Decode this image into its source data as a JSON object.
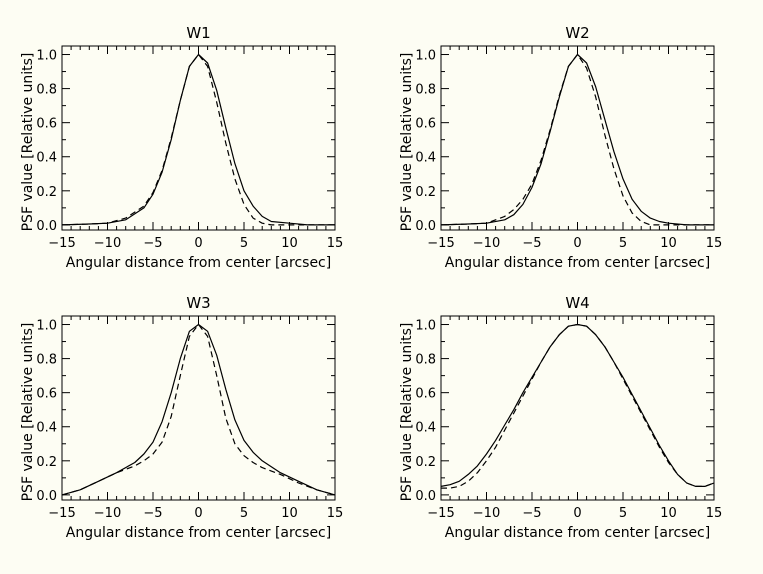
{
  "chart_data": [
    {
      "type": "line",
      "title": "W1",
      "xlabel": "Angular distance from center [arcsec]",
      "ylabel": "PSF value [Relative units]",
      "xlim": [
        -15,
        15
      ],
      "ylim": [
        -0.03,
        1.05
      ],
      "xticks": [
        "-15",
        "-10",
        "-5",
        "0",
        "5",
        "10",
        "15"
      ],
      "yticks": [
        "0.0",
        "0.2",
        "0.4",
        "0.6",
        "0.8",
        "1.0"
      ],
      "grid": false,
      "series": [
        {
          "style": "solid",
          "x": [
            -15,
            -12,
            -10,
            -8,
            -6,
            -5,
            -4,
            -3,
            -2,
            -1,
            0,
            1,
            2,
            3,
            4,
            5,
            6,
            7,
            8,
            10,
            12,
            15
          ],
          "y": [
            0.0,
            0.005,
            0.01,
            0.03,
            0.1,
            0.18,
            0.31,
            0.5,
            0.73,
            0.93,
            1.0,
            0.95,
            0.79,
            0.57,
            0.36,
            0.2,
            0.11,
            0.05,
            0.02,
            0.01,
            0.0,
            0.0
          ]
        },
        {
          "style": "dashed",
          "x": [
            -15,
            -12,
            -10,
            -8,
            -6,
            -5,
            -4,
            -3,
            -2,
            -1,
            0,
            1,
            2,
            3,
            4,
            5,
            6,
            7,
            8,
            10,
            12,
            15
          ],
          "y": [
            0.0,
            0.005,
            0.01,
            0.04,
            0.11,
            0.19,
            0.32,
            0.51,
            0.73,
            0.93,
            1.0,
            0.93,
            0.72,
            0.48,
            0.27,
            0.12,
            0.04,
            0.01,
            0.0,
            0.0,
            0.0,
            0.0
          ]
        }
      ]
    },
    {
      "type": "line",
      "title": "W2",
      "xlabel": "Angular distance from center [arcsec]",
      "ylabel": "PSF value [Relative units]",
      "xlim": [
        -15,
        15
      ],
      "ylim": [
        -0.03,
        1.05
      ],
      "xticks": [
        "-15",
        "-10",
        "-5",
        "0",
        "5",
        "10",
        "15"
      ],
      "yticks": [
        "0.0",
        "0.2",
        "0.4",
        "0.6",
        "0.8",
        "1.0"
      ],
      "grid": false,
      "series": [
        {
          "style": "solid",
          "x": [
            -15,
            -12,
            -10,
            -8,
            -7,
            -6,
            -5,
            -4,
            -3,
            -2,
            -1,
            0,
            1,
            2,
            3,
            4,
            5,
            6,
            7,
            8,
            9,
            10,
            12,
            15
          ],
          "y": [
            0.0,
            0.005,
            0.01,
            0.03,
            0.06,
            0.12,
            0.22,
            0.36,
            0.55,
            0.75,
            0.93,
            1.0,
            0.95,
            0.81,
            0.62,
            0.43,
            0.27,
            0.15,
            0.08,
            0.04,
            0.02,
            0.01,
            0.0,
            0.0
          ]
        },
        {
          "style": "dashed",
          "x": [
            -15,
            -12,
            -10,
            -8,
            -7,
            -6,
            -5,
            -4,
            -3,
            -2,
            -1,
            0,
            1,
            2,
            3,
            4,
            5,
            6,
            7,
            8,
            9,
            10,
            12,
            15
          ],
          "y": [
            0.0,
            0.005,
            0.01,
            0.05,
            0.09,
            0.15,
            0.24,
            0.38,
            0.56,
            0.76,
            0.93,
            1.0,
            0.92,
            0.75,
            0.53,
            0.33,
            0.17,
            0.07,
            0.02,
            0.0,
            0.0,
            0.0,
            0.0,
            0.0
          ]
        }
      ]
    },
    {
      "type": "line",
      "title": "W3",
      "xlabel": "Angular distance from center [arcsec]",
      "ylabel": "PSF value [Relative units]",
      "xlim": [
        -15,
        15
      ],
      "ylim": [
        -0.03,
        1.05
      ],
      "xticks": [
        "-15",
        "-10",
        "-5",
        "0",
        "5",
        "10",
        "15"
      ],
      "yticks": [
        "0.0",
        "0.2",
        "0.4",
        "0.6",
        "0.8",
        "1.0"
      ],
      "grid": false,
      "series": [
        {
          "style": "solid",
          "x": [
            -15,
            -13,
            -11,
            -9,
            -7,
            -6,
            -5,
            -4,
            -3,
            -2,
            -1,
            0,
            1,
            2,
            3,
            4,
            5,
            6,
            7,
            9,
            11,
            13,
            15
          ],
          "y": [
            0.0,
            0.03,
            0.08,
            0.13,
            0.19,
            0.24,
            0.31,
            0.43,
            0.6,
            0.8,
            0.96,
            1.0,
            0.96,
            0.82,
            0.62,
            0.44,
            0.32,
            0.25,
            0.2,
            0.13,
            0.08,
            0.03,
            0.0
          ]
        },
        {
          "style": "dashed",
          "x": [
            -15,
            -13,
            -11,
            -9,
            -7,
            -6,
            -5,
            -4,
            -3,
            -2,
            -1,
            0,
            1,
            2,
            3,
            4,
            5,
            6,
            7,
            9,
            11,
            13,
            15
          ],
          "y": [
            0.0,
            0.03,
            0.08,
            0.13,
            0.17,
            0.2,
            0.24,
            0.31,
            0.46,
            0.7,
            0.93,
            1.0,
            0.93,
            0.7,
            0.45,
            0.3,
            0.23,
            0.19,
            0.16,
            0.12,
            0.07,
            0.03,
            0.0
          ]
        }
      ]
    },
    {
      "type": "line",
      "title": "W4",
      "xlabel": "Angular distance from center [arcsec]",
      "ylabel": "PSF value [Relative units]",
      "xlim": [
        -15,
        15
      ],
      "ylim": [
        -0.03,
        1.05
      ],
      "xticks": [
        "-15",
        "-10",
        "-5",
        "0",
        "5",
        "10",
        "15"
      ],
      "yticks": [
        "0.0",
        "0.2",
        "0.4",
        "0.6",
        "0.8",
        "1.0"
      ],
      "grid": false,
      "series": [
        {
          "style": "solid",
          "x": [
            -15,
            -14,
            -13,
            -12,
            -11,
            -10,
            -9,
            -8,
            -7,
            -6,
            -5,
            -4,
            -3,
            -2,
            -1,
            0,
            1,
            2,
            3,
            4,
            5,
            6,
            7,
            8,
            9,
            10,
            11,
            12,
            13,
            14,
            15
          ],
          "y": [
            0.05,
            0.06,
            0.08,
            0.12,
            0.17,
            0.24,
            0.32,
            0.41,
            0.5,
            0.6,
            0.69,
            0.78,
            0.87,
            0.94,
            0.99,
            1.0,
            0.99,
            0.94,
            0.87,
            0.78,
            0.69,
            0.59,
            0.49,
            0.39,
            0.29,
            0.2,
            0.12,
            0.07,
            0.05,
            0.05,
            0.07
          ]
        },
        {
          "style": "dashed",
          "x": [
            -15,
            -14,
            -13,
            -12,
            -11,
            -10,
            -9,
            -8,
            -7,
            -6,
            -5,
            -4,
            -3,
            -2,
            -1,
            0,
            1,
            2,
            3,
            4,
            5,
            6,
            7,
            8,
            9,
            10,
            11,
            12,
            13,
            14,
            15
          ],
          "y": [
            0.04,
            0.04,
            0.05,
            0.08,
            0.13,
            0.2,
            0.28,
            0.38,
            0.48,
            0.58,
            0.68,
            0.78,
            0.87,
            0.94,
            0.99,
            1.0,
            0.99,
            0.94,
            0.87,
            0.78,
            0.68,
            0.58,
            0.48,
            0.38,
            0.28,
            0.19,
            0.12,
            0.07,
            0.05,
            0.05,
            0.07
          ]
        }
      ]
    }
  ]
}
